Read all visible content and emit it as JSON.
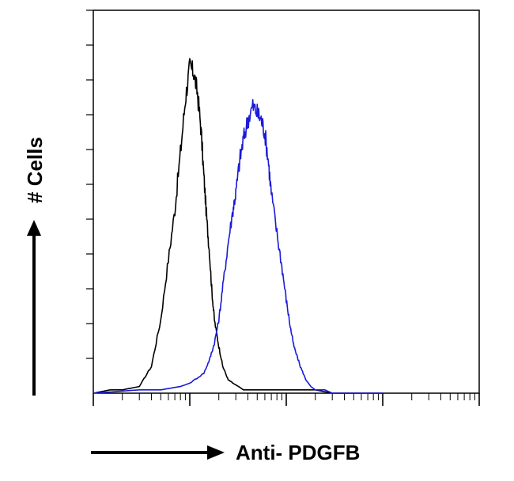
{
  "chart_data": {
    "type": "line",
    "title": "",
    "xlabel": "Anti- PDGFB",
    "ylabel": "# Cells",
    "x_scale": "log",
    "xlim": [
      1,
      10000
    ],
    "ylim": [
      0,
      110
    ],
    "grid": false,
    "colors": {
      "control": "#000000",
      "stained": "#1a1ad9"
    },
    "series": [
      {
        "key": "control",
        "x": [
          1,
          1.5,
          2,
          3,
          4,
          5,
          6,
          7,
          8,
          9,
          10,
          11,
          12,
          13,
          14,
          15,
          16,
          17,
          18,
          20,
          22,
          25,
          28,
          32,
          36,
          40,
          50,
          60,
          100,
          200,
          300,
          500,
          1000
        ],
        "y": [
          0,
          1,
          1,
          2,
          8,
          22,
          40,
          55,
          72,
          88,
          98,
          96,
          90,
          80,
          65,
          52,
          42,
          30,
          22,
          14,
          8,
          4,
          3,
          2,
          1,
          1,
          1,
          1,
          1,
          1,
          0,
          0,
          0
        ]
      },
      {
        "key": "stained",
        "x": [
          1,
          3,
          5,
          8,
          10,
          14,
          16,
          18,
          20,
          22,
          25,
          28,
          30,
          33,
          36,
          40,
          45,
          50,
          55,
          60,
          65,
          70,
          80,
          90,
          100,
          110,
          120,
          140,
          160,
          180,
          200,
          250,
          300,
          500,
          1000
        ],
        "y": [
          0,
          1,
          1,
          2,
          3,
          6,
          10,
          15,
          22,
          32,
          45,
          55,
          60,
          70,
          76,
          82,
          86,
          84,
          82,
          78,
          70,
          60,
          48,
          38,
          28,
          20,
          14,
          8,
          4,
          2,
          1,
          1,
          0,
          0,
          0
        ]
      }
    ]
  }
}
